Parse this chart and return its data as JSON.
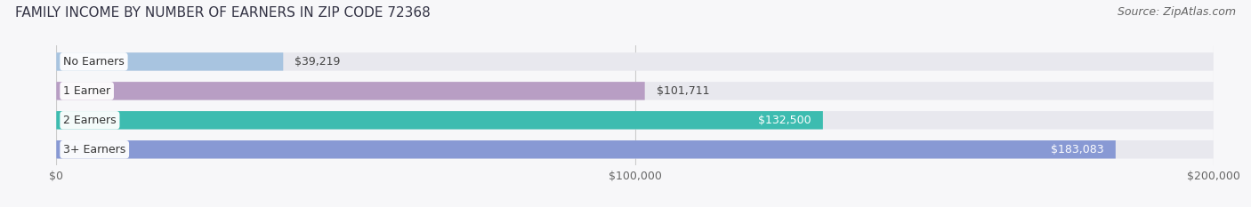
{
  "title": "FAMILY INCOME BY NUMBER OF EARNERS IN ZIP CODE 72368",
  "source": "Source: ZipAtlas.com",
  "categories": [
    "No Earners",
    "1 Earner",
    "2 Earners",
    "3+ Earners"
  ],
  "values": [
    39219,
    101711,
    132500,
    183083
  ],
  "labels": [
    "$39,219",
    "$101,711",
    "$132,500",
    "$183,083"
  ],
  "label_inside": [
    false,
    false,
    true,
    true
  ],
  "bar_colors": [
    "#a8c4e0",
    "#b89ec4",
    "#3dbcb0",
    "#8899d4"
  ],
  "bar_bg_color": "#e8e8ee",
  "xlim": [
    0,
    200000
  ],
  "xticks": [
    0,
    100000,
    200000
  ],
  "xtick_labels": [
    "$0",
    "$100,000",
    "$200,000"
  ],
  "title_fontsize": 11,
  "source_fontsize": 9,
  "label_fontsize": 9,
  "category_fontsize": 9,
  "background_color": "#f7f7f9",
  "bar_height": 0.62,
  "bar_gap": 0.08,
  "fig_width": 14.06,
  "fig_height": 2.33
}
